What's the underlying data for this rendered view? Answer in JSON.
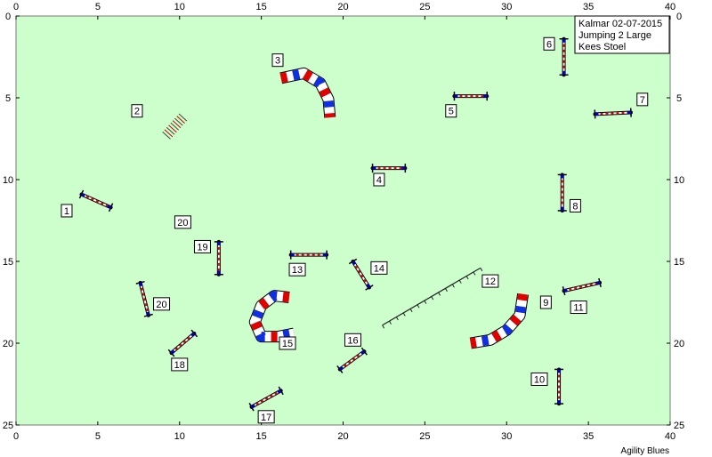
{
  "info": {
    "event": "Kalmar 02-07-2015",
    "class": "Jumping 2 Large",
    "judge": "Kees Stoel"
  },
  "footer": "Agility Blues",
  "axes": {
    "x_ticks": [
      0,
      5,
      10,
      15,
      20,
      25,
      30,
      35,
      40
    ],
    "y_ticks": [
      0,
      5,
      10,
      15,
      20,
      25
    ],
    "xlim": [
      0,
      40
    ],
    "ylim": [
      0,
      25
    ]
  },
  "obstacles": [
    {
      "n": "1",
      "type": "jump",
      "x1": 4.0,
      "y1": 10.9,
      "x2": 5.8,
      "y2": 11.7,
      "lx": 3.1,
      "ly": 11.9
    },
    {
      "n": "2",
      "type": "wall",
      "x1": 9.2,
      "y1": 7.3,
      "x2": 10.2,
      "y2": 6.2,
      "lx": 7.4,
      "ly": 5.8
    },
    {
      "n": "3",
      "type": "tunnel",
      "pts": [
        [
          16.2,
          3.8
        ],
        [
          17.6,
          3.5
        ],
        [
          18.6,
          4.1
        ],
        [
          19.1,
          5.1
        ],
        [
          19.2,
          6.2
        ]
      ],
      "lx": 16.0,
      "ly": 2.7
    },
    {
      "n": "4",
      "type": "jump",
      "x1": 21.8,
      "y1": 9.3,
      "x2": 23.8,
      "y2": 9.3,
      "lx": 22.2,
      "ly": 10.0
    },
    {
      "n": "5",
      "type": "jump",
      "x1": 26.8,
      "y1": 4.9,
      "x2": 28.8,
      "y2": 4.9,
      "lx": 26.6,
      "ly": 5.8
    },
    {
      "n": "6",
      "type": "jump",
      "x1": 33.5,
      "y1": 1.4,
      "x2": 33.5,
      "y2": 3.6,
      "lx": 32.6,
      "ly": 1.7
    },
    {
      "n": "7",
      "type": "jump",
      "x1": 35.4,
      "y1": 6.0,
      "x2": 37.6,
      "y2": 5.9,
      "lx": 38.3,
      "ly": 5.1
    },
    {
      "n": "8",
      "type": "jump",
      "x1": 33.4,
      "y1": 9.7,
      "x2": 33.4,
      "y2": 11.9,
      "lx": 34.2,
      "ly": 11.6
    },
    {
      "n": "9",
      "type": "tunnel",
      "pts": [
        [
          31.0,
          17.0
        ],
        [
          30.8,
          18.3
        ],
        [
          30.0,
          19.2
        ],
        [
          29.0,
          19.8
        ],
        [
          27.8,
          20.0
        ]
      ],
      "lx": 32.4,
      "ly": 17.5
    },
    {
      "n": "10",
      "type": "jump",
      "x1": 33.2,
      "y1": 21.6,
      "x2": 33.2,
      "y2": 23.7,
      "lx": 32.0,
      "ly": 22.2
    },
    {
      "n": "11",
      "type": "jump",
      "x1": 33.5,
      "y1": 16.8,
      "x2": 35.7,
      "y2": 16.3,
      "lx": 34.4,
      "ly": 17.8
    },
    {
      "n": "12",
      "type": "longjump",
      "x1": 22.4,
      "y1": 18.9,
      "x2": 28.4,
      "y2": 15.4,
      "lx": 29.0,
      "ly": 16.2
    },
    {
      "n": "13",
      "type": "jump",
      "x1": 16.8,
      "y1": 14.6,
      "x2": 19.0,
      "y2": 14.6,
      "lx": 17.2,
      "ly": 15.5
    },
    {
      "n": "14",
      "type": "jump",
      "x1": 20.6,
      "y1": 15.0,
      "x2": 21.6,
      "y2": 16.6,
      "lx": 22.2,
      "ly": 15.4
    },
    {
      "n": "15",
      "type": "tunnel",
      "pts": [
        [
          16.7,
          17.2
        ],
        [
          15.8,
          17.1
        ],
        [
          15.0,
          17.7
        ],
        [
          14.6,
          18.7
        ],
        [
          15.0,
          19.6
        ],
        [
          16.0,
          19.6
        ],
        [
          17.0,
          19.4
        ]
      ],
      "lx": 16.6,
      "ly": 20.0
    },
    {
      "n": "16",
      "type": "jump",
      "x1": 19.8,
      "y1": 21.6,
      "x2": 21.3,
      "y2": 20.5,
      "lx": 20.6,
      "ly": 19.8
    },
    {
      "n": "17",
      "type": "jump",
      "x1": 14.4,
      "y1": 23.9,
      "x2": 16.2,
      "y2": 22.9,
      "lx": 15.3,
      "ly": 24.5
    },
    {
      "n": "18",
      "type": "jump",
      "x1": 9.5,
      "y1": 20.6,
      "x2": 10.9,
      "y2": 19.4,
      "lx": 10.0,
      "ly": 21.3
    },
    {
      "n": "19",
      "type": "jump",
      "x1": 12.4,
      "y1": 13.8,
      "x2": 12.4,
      "y2": 15.8,
      "lx": 11.4,
      "ly": 14.1
    },
    {
      "n": "20",
      "type": "jump",
      "x1": 7.6,
      "y1": 16.3,
      "x2": 8.1,
      "y2": 18.3,
      "lx": 8.9,
      "ly": 17.6
    },
    {
      "n": "20",
      "type": "label",
      "lx": 10.2,
      "ly": 12.6
    }
  ]
}
